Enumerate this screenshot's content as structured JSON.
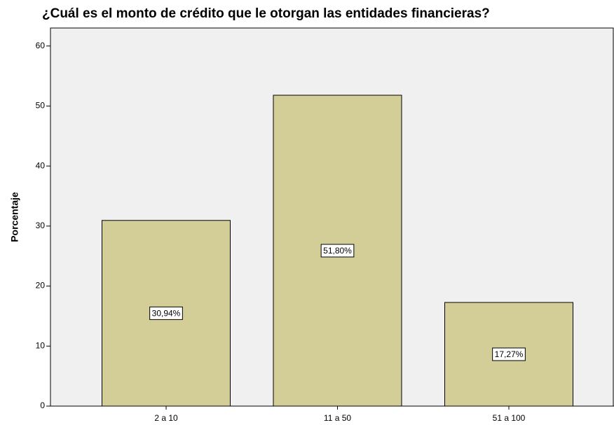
{
  "chart_data": {
    "type": "bar",
    "title": "¿Cuál es el monto de crédito que le otorgan las entidades financieras?",
    "y_label": "Porcentaje",
    "categories": [
      "2 a 10",
      "11 a 50",
      "51 a 100"
    ],
    "values": [
      30.94,
      51.8,
      17.27
    ],
    "value_labels": [
      "30,94%",
      "51,80%",
      "17,27%"
    ],
    "color": "#d3ce97",
    "ylim": [
      0,
      63
    ],
    "yticks": [
      0,
      10,
      20,
      30,
      40,
      50,
      60
    ]
  }
}
